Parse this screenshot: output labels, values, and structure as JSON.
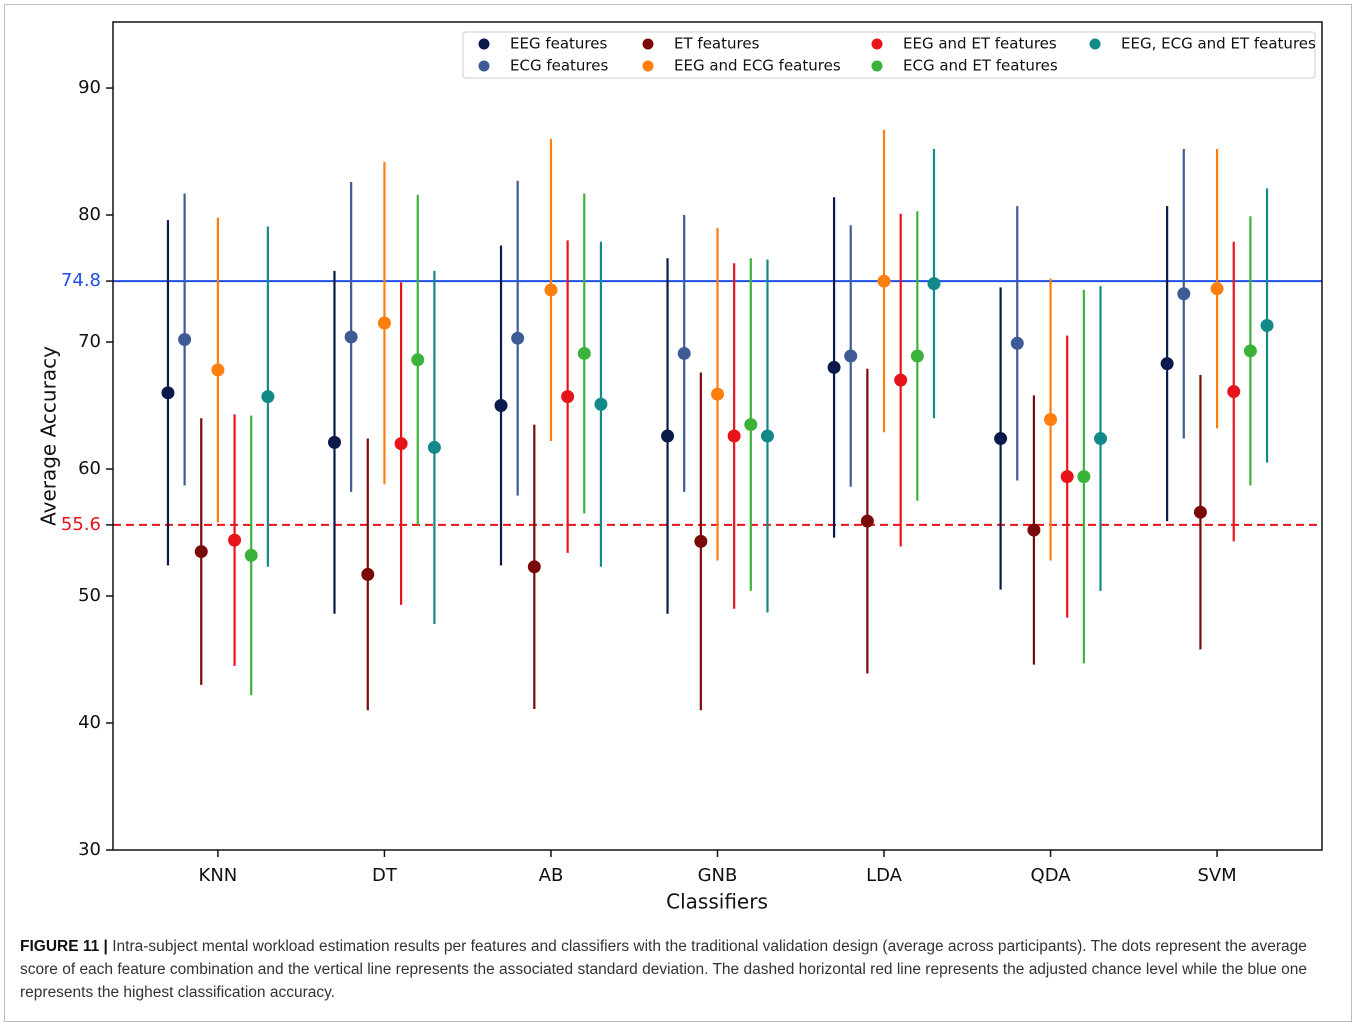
{
  "chart_data": {
    "type": "errorbar",
    "xlabel": "Classifiers",
    "ylabel": "Average Accuracy",
    "categories": [
      "KNN",
      "DT",
      "AB",
      "GNB",
      "LDA",
      "QDA",
      "SVM"
    ],
    "ylim": [
      30,
      95.2
    ],
    "yticks": [
      30,
      40,
      50,
      60,
      70,
      80,
      90
    ],
    "hlines": [
      {
        "value": 74.8,
        "color": "#1f4fe8",
        "style": "solid"
      },
      {
        "value": 55.6,
        "color": "#e8141b",
        "style": "dashed"
      }
    ],
    "series": [
      {
        "name": "EEG features",
        "color": "#0b1a4a",
        "values": [
          66.0,
          62.1,
          65.0,
          62.6,
          68.0,
          62.4,
          68.3
        ],
        "errors": [
          13.6,
          13.5,
          12.6,
          14.0,
          13.4,
          11.9,
          12.4
        ]
      },
      {
        "name": "ECG features",
        "color": "#3f5b95",
        "values": [
          70.2,
          70.4,
          70.3,
          69.1,
          68.9,
          69.9,
          73.8
        ],
        "errors": [
          11.5,
          12.2,
          12.4,
          10.9,
          10.3,
          10.8,
          11.4
        ]
      },
      {
        "name": "ET features",
        "color": "#7a0a0a",
        "values": [
          53.5,
          51.7,
          52.3,
          54.3,
          55.9,
          55.2,
          56.6
        ],
        "errors": [
          10.5,
          10.7,
          11.2,
          13.3,
          12.0,
          10.6,
          10.8
        ]
      },
      {
        "name": "EEG and ECG features",
        "color": "#ff7f0e",
        "values": [
          67.8,
          71.5,
          74.1,
          65.9,
          74.8,
          63.9,
          74.2
        ],
        "errors": [
          12.0,
          12.7,
          11.9,
          13.1,
          11.9,
          11.1,
          11.0
        ]
      },
      {
        "name": "EEG and ET features",
        "color": "#e8141b",
        "values": [
          54.4,
          62.0,
          65.7,
          62.6,
          67.0,
          59.4,
          66.1
        ],
        "errors": [
          9.9,
          12.7,
          12.3,
          13.6,
          13.1,
          11.1,
          11.8
        ]
      },
      {
        "name": "ECG and ET features",
        "color": "#3bb33b",
        "values": [
          53.2,
          68.6,
          69.1,
          63.5,
          68.9,
          59.4,
          69.3
        ],
        "errors": [
          11.0,
          13.0,
          12.6,
          13.1,
          11.4,
          14.7,
          10.6
        ]
      },
      {
        "name": "EEG, ECG and ET features",
        "color": "#138a8a",
        "values": [
          65.7,
          61.7,
          65.1,
          62.6,
          74.6,
          62.4,
          71.3
        ],
        "errors": [
          13.4,
          13.9,
          12.8,
          13.9,
          10.6,
          12.0,
          10.8
        ]
      }
    ],
    "legend": {
      "columns": 4
    }
  },
  "caption": {
    "label": "FIGURE 11 |",
    "text": "Intra-subject mental workload estimation results per features and classifiers with the traditional validation design (average across participants). The dots represent the average score of each feature combination and the vertical line represents the associated standard deviation. The dashed horizontal red line represents the adjusted chance level while the blue one represents the highest classification accuracy."
  }
}
